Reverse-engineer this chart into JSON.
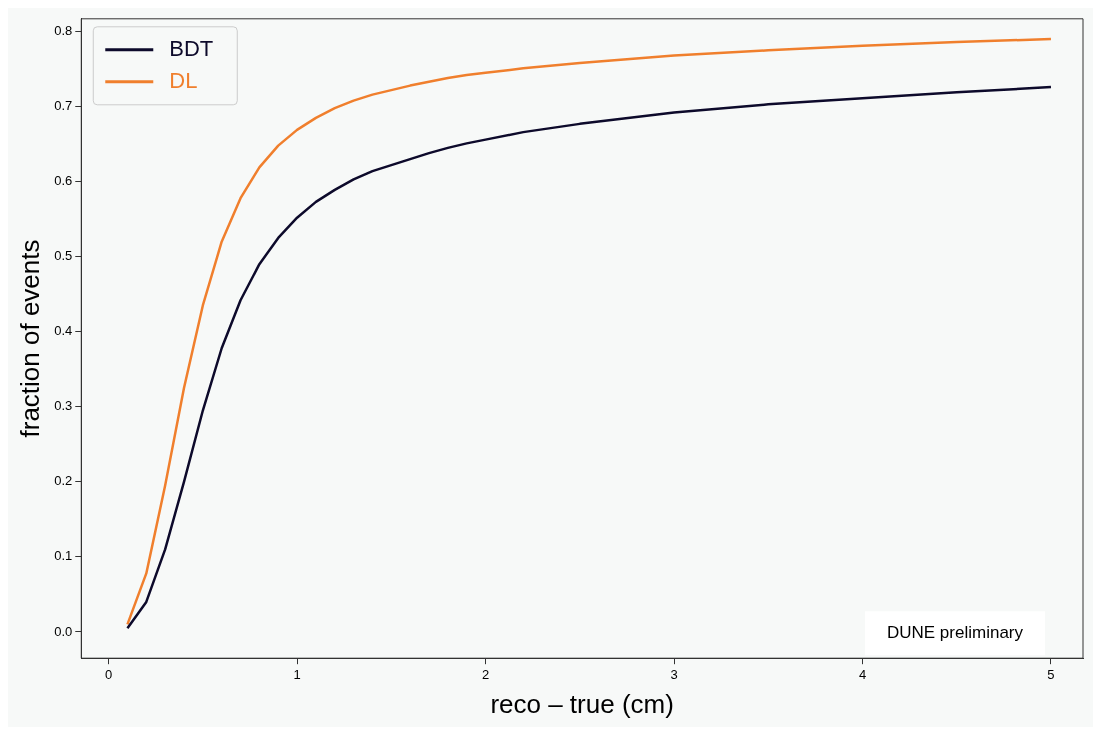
{
  "chart_data": {
    "type": "line",
    "xlabel": "reco – true (cm)",
    "ylabel": "fraction of events",
    "annotations": [
      "DUNE preliminary"
    ],
    "xlim": [
      -0.145,
      5.17
    ],
    "xticks": [
      0,
      1,
      2,
      3,
      4,
      5
    ],
    "ylim": [
      -0.035,
      0.817
    ],
    "yticks": [
      {
        "value": 0,
        "label": "0.0"
      },
      0.1,
      0.2,
      0.3,
      0.4,
      0.5,
      0.6,
      0.7,
      0.8
    ],
    "grid": false,
    "legend": "top left",
    "marker": "none",
    "line_style": "solid",
    "x": [
      0.1,
      0.2,
      0.3,
      0.4,
      0.5,
      0.6,
      0.7,
      0.8,
      0.9,
      1.0,
      1.1,
      1.2,
      1.3,
      1.4,
      1.5,
      1.6,
      1.7,
      1.8,
      1.9,
      2.0,
      2.2,
      2.5,
      3,
      3.5,
      4,
      4.5,
      5
    ],
    "series": [
      {
        "name": "BDT",
        "color": "#0d0a2b",
        "values": [
          0.005,
          0.04,
          0.11,
          0.2,
          0.295,
          0.378,
          0.442,
          0.49,
          0.525,
          0.552,
          0.573,
          0.589,
          0.603,
          0.614,
          0.622,
          0.63,
          0.638,
          0.645,
          0.651,
          0.656,
          0.666,
          0.677,
          0.692,
          0.703,
          0.711,
          0.719,
          0.726
        ]
      },
      {
        "name": "DL",
        "color": "#f07f2d",
        "values": [
          0.01,
          0.078,
          0.195,
          0.325,
          0.435,
          0.52,
          0.578,
          0.619,
          0.648,
          0.669,
          0.685,
          0.698,
          0.708,
          0.716,
          0.722,
          0.728,
          0.733,
          0.738,
          0.742,
          0.745,
          0.751,
          0.758,
          0.768,
          0.775,
          0.781,
          0.786,
          0.79
        ]
      }
    ]
  }
}
